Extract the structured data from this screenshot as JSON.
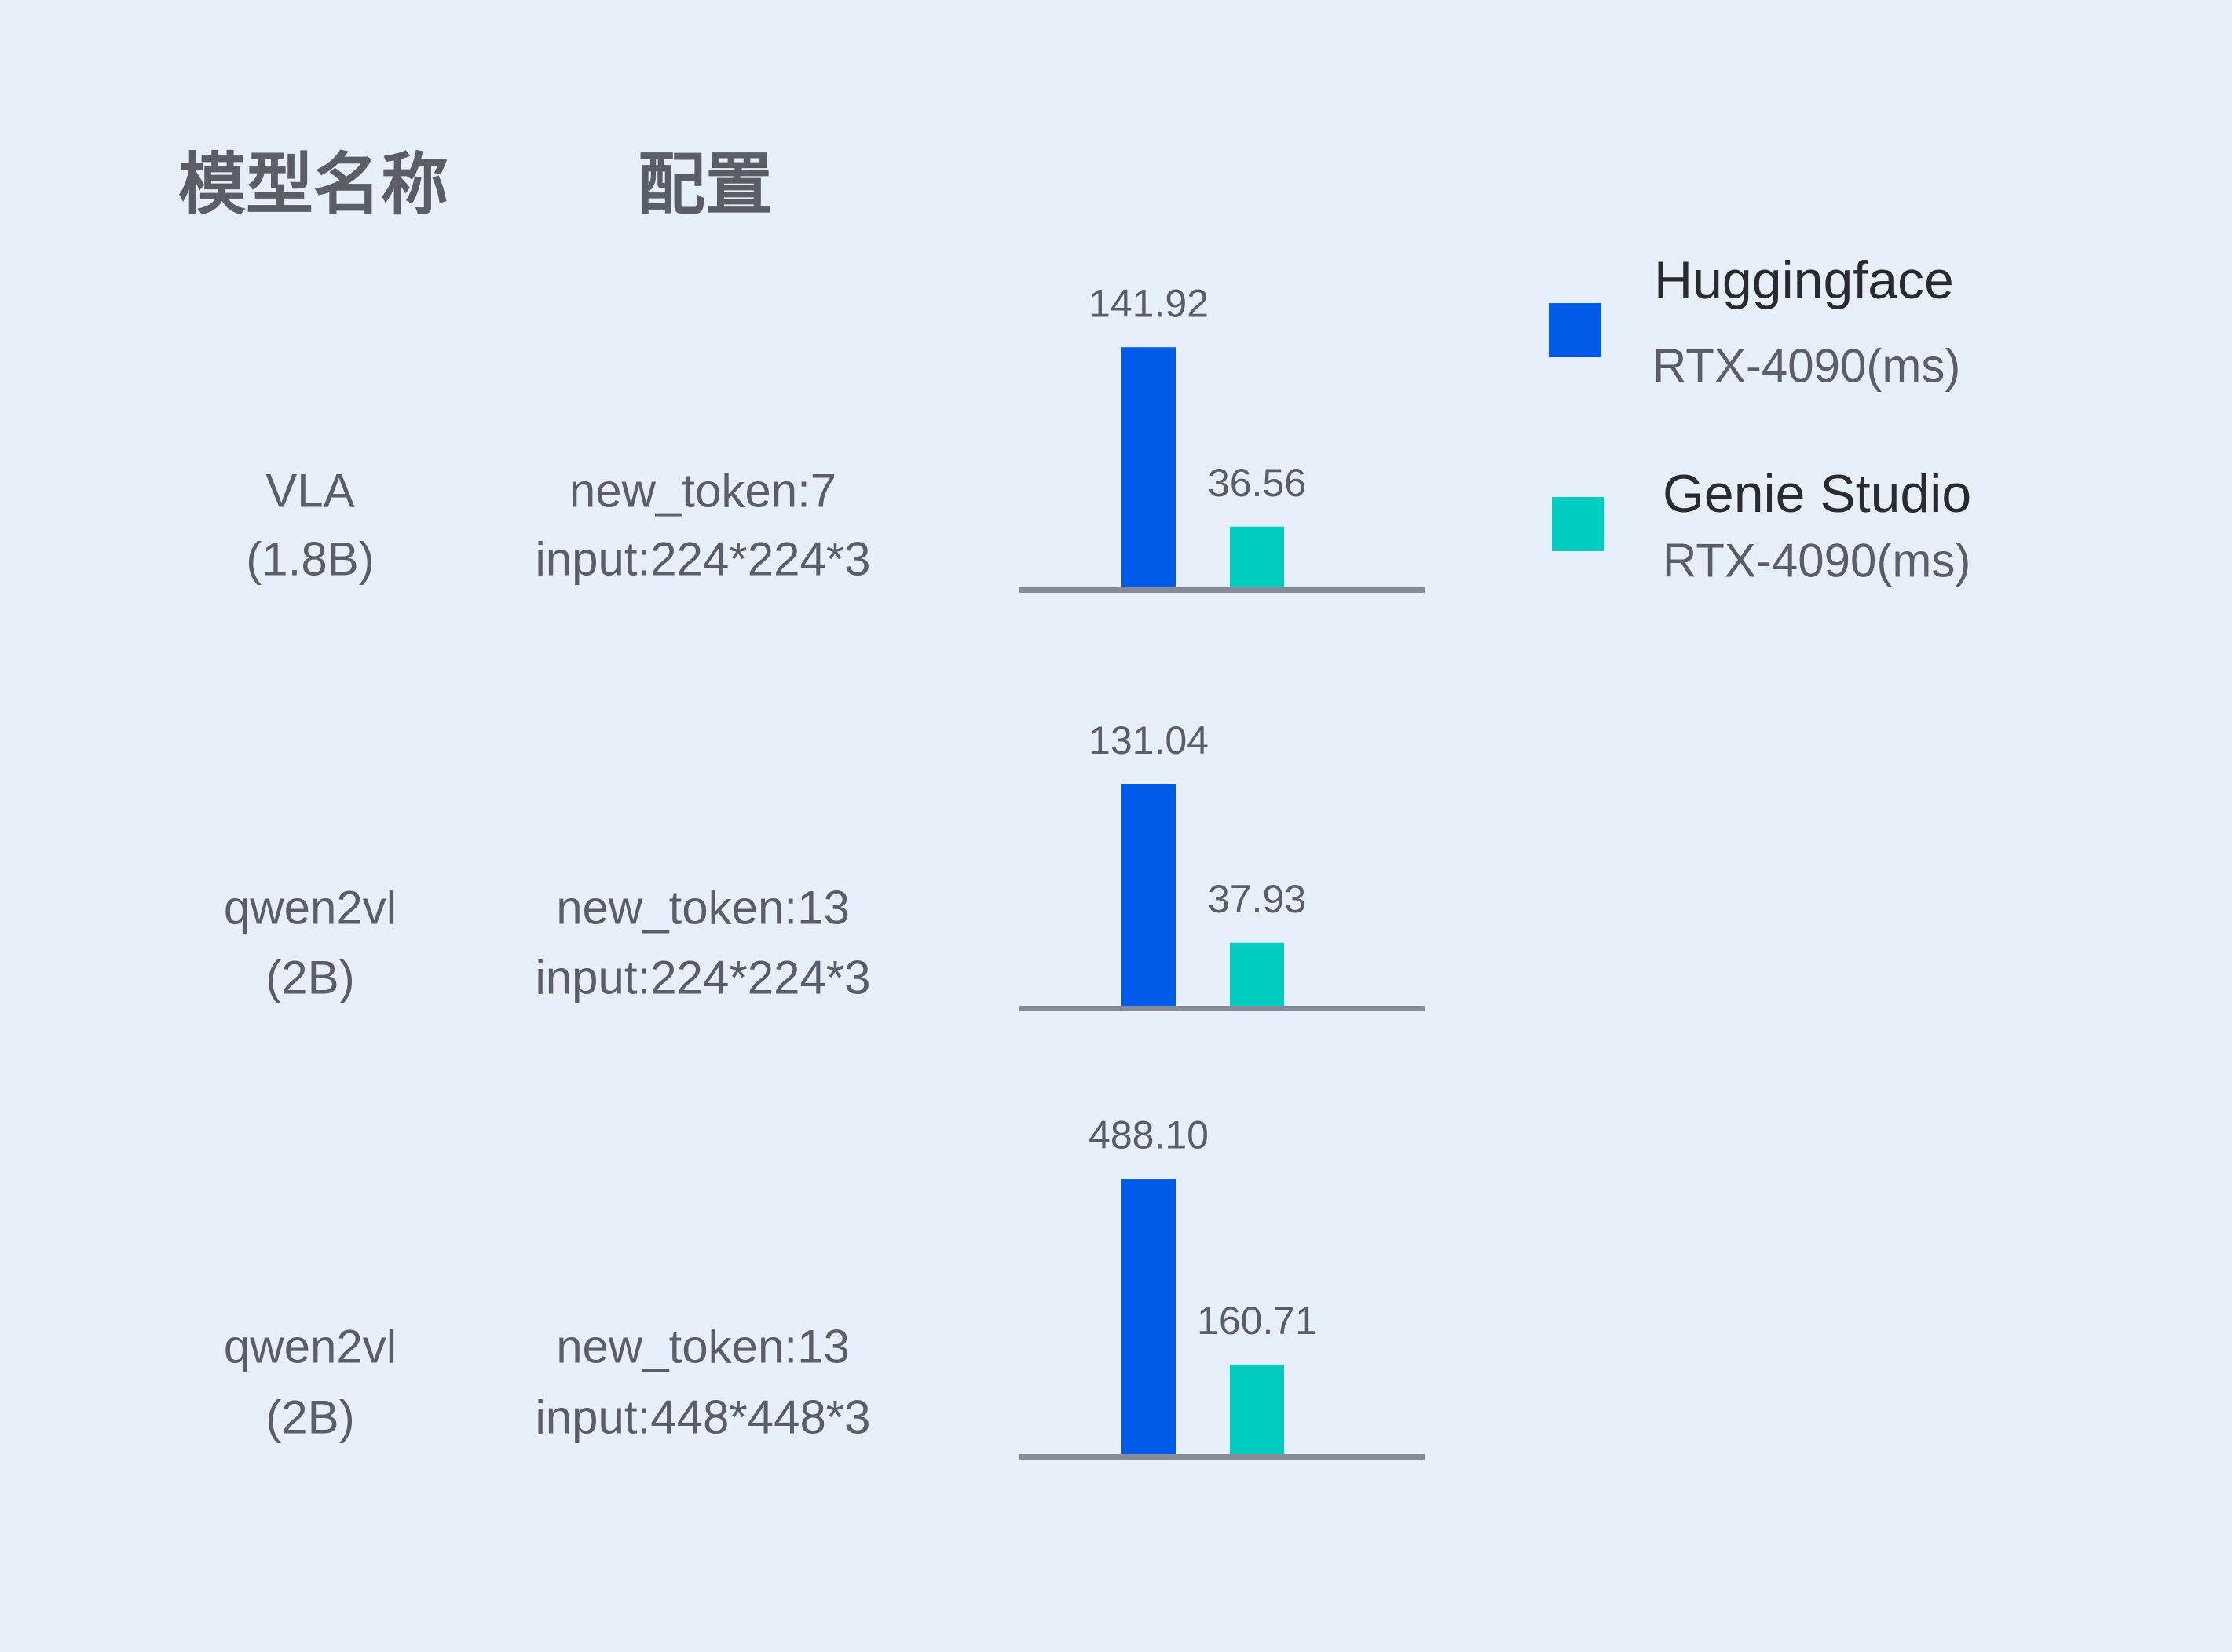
{
  "headers": {
    "model": "模型名称",
    "config": "配置"
  },
  "rows": [
    {
      "model_line1": "VLA",
      "model_line2": "(1.8B)",
      "config_line1": "new_token:7",
      "config_line2": "input:224*224*3"
    },
    {
      "model_line1": "qwen2vl",
      "model_line2": "(2B)",
      "config_line1": "new_token:13",
      "config_line2": "input:224*224*3"
    },
    {
      "model_line1": "qwen2vl",
      "model_line2": "(2B)",
      "config_line1": "new_token:13",
      "config_line2": "input:448*448*3"
    }
  ],
  "legend": [
    {
      "title": "Huggingface",
      "subtitle": "RTX-4090(ms)",
      "color": "#005CE8"
    },
    {
      "title": "Genie Studio",
      "subtitle": "RTX-4090(ms)",
      "color": "#00CCC0"
    }
  ],
  "chart_data": [
    {
      "type": "bar",
      "categories": [
        "Huggingface RTX-4090(ms)",
        "Genie Studio RTX-4090(ms)"
      ],
      "values": [
        141.92,
        36.56
      ],
      "labels": [
        "141.92",
        "36.56"
      ],
      "ylim": [
        0,
        166
      ],
      "grid": false,
      "legend": "right"
    },
    {
      "type": "bar",
      "categories": [
        "Huggingface RTX-4090(ms)",
        "Genie Studio RTX-4090(ms)"
      ],
      "values": [
        131.04,
        37.93
      ],
      "labels": [
        "131.04",
        "37.93"
      ],
      "ylim": [
        0,
        166
      ],
      "grid": false,
      "legend": "right"
    },
    {
      "type": "bar",
      "categories": [
        "Huggingface RTX-4090(ms)",
        "Genie Studio RTX-4090(ms)"
      ],
      "values": [
        488.1,
        160.71
      ],
      "labels": [
        "488.10",
        "160.71"
      ],
      "ylim": [
        0,
        498
      ],
      "grid": false,
      "legend": "right"
    }
  ],
  "colors": {
    "axis": "#888C98",
    "background": "#E7EFFB"
  }
}
